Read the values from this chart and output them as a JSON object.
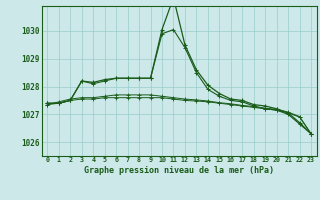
{
  "title": "Graphe pression niveau de la mer (hPa)",
  "background_color": "#cce8e8",
  "grid_color": "#99cccc",
  "line_color": "#1a5c1a",
  "xlim": [
    -0.5,
    23.5
  ],
  "ylim": [
    1025.5,
    1030.9
  ],
  "yticks": [
    1026,
    1027,
    1028,
    1029,
    1030
  ],
  "xticks": [
    0,
    1,
    2,
    3,
    4,
    5,
    6,
    7,
    8,
    9,
    10,
    11,
    12,
    13,
    14,
    15,
    16,
    17,
    18,
    19,
    20,
    21,
    22,
    23
  ],
  "line1": [
    1027.4,
    1027.4,
    1027.5,
    1028.2,
    1028.15,
    1028.25,
    1028.3,
    1028.3,
    1028.3,
    1028.3,
    1030.05,
    1031.2,
    1029.5,
    1028.6,
    1028.05,
    1027.75,
    1027.55,
    1027.5,
    1027.35,
    1027.3,
    1027.2,
    1027.05,
    1026.7,
    1026.3
  ],
  "line2": [
    1027.4,
    1027.4,
    1027.5,
    1028.2,
    1028.1,
    1028.2,
    1028.3,
    1028.3,
    1028.3,
    1028.3,
    1029.9,
    1030.05,
    1029.4,
    1028.5,
    1027.9,
    1027.65,
    1027.5,
    1027.45,
    1027.3,
    1027.2,
    1027.15,
    1027.0,
    1026.65,
    1026.3
  ],
  "line3": [
    1027.35,
    1027.4,
    1027.5,
    1027.55,
    1027.55,
    1027.6,
    1027.6,
    1027.6,
    1027.6,
    1027.6,
    1027.6,
    1027.55,
    1027.5,
    1027.48,
    1027.45,
    1027.4,
    1027.35,
    1027.3,
    1027.25,
    1027.2,
    1027.15,
    1027.05,
    1026.9,
    1026.3
  ],
  "line4": [
    1027.35,
    1027.45,
    1027.55,
    1027.6,
    1027.6,
    1027.65,
    1027.7,
    1027.7,
    1027.7,
    1027.7,
    1027.65,
    1027.6,
    1027.55,
    1027.52,
    1027.48,
    1027.42,
    1027.38,
    1027.32,
    1027.28,
    1027.22,
    1027.18,
    1027.08,
    1026.92,
    1026.3
  ]
}
